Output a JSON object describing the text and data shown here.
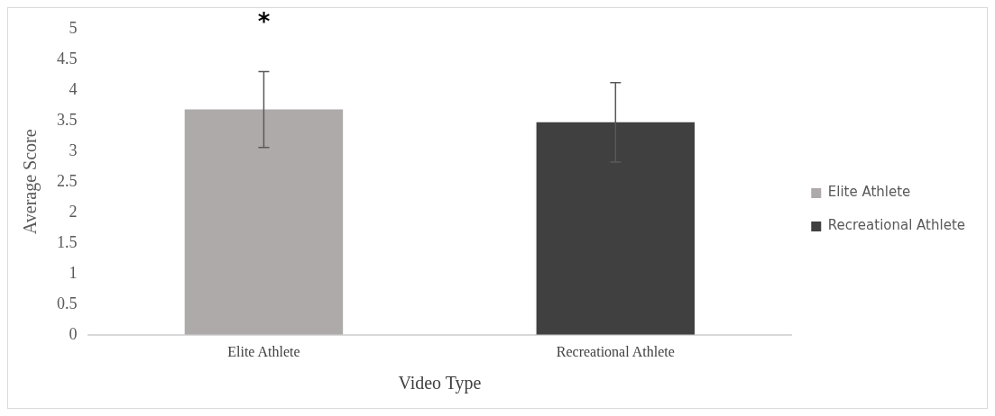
{
  "chart_data": {
    "type": "bar",
    "xlabel": "Video Type",
    "ylabel": "Average Score",
    "categories": [
      "Elite Athlete",
      "Recreational Athlete"
    ],
    "series": [
      {
        "name": "Elite Athlete",
        "color": "#aeaaaa",
        "values": [
          3.68,
          null
        ],
        "errors": [
          0.62,
          null
        ]
      },
      {
        "name": "Recreational Athlete",
        "color": "#404040",
        "values": [
          null,
          3.47
        ],
        "errors": [
          null,
          0.65
        ]
      }
    ],
    "ylim": [
      0,
      5
    ],
    "yticks": [
      0,
      0.5,
      1,
      1.5,
      2,
      2.5,
      3,
      3.5,
      4,
      4.5,
      5
    ],
    "grid": false,
    "legend": "right",
    "annotations": [
      "*"
    ]
  }
}
